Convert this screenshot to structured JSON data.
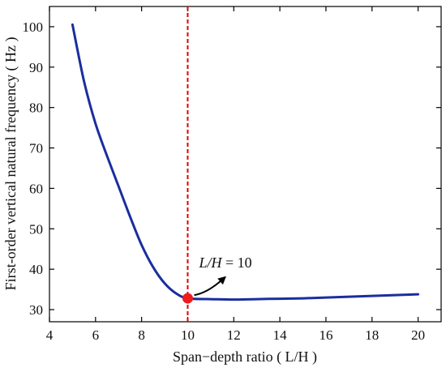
{
  "chart_data": {
    "type": "line",
    "xlabel": "Span−depth ratio ( L/H )",
    "ylabel": "First-order vertical natural frequency ( Hz )",
    "xlim": [
      4,
      21
    ],
    "ylim": [
      27,
      105
    ],
    "x_ticks": [
      4,
      6,
      8,
      10,
      12,
      14,
      16,
      18,
      20
    ],
    "y_ticks": [
      30,
      40,
      50,
      60,
      70,
      80,
      90,
      100
    ],
    "grid": false,
    "legend": "none",
    "colors": {
      "line": "#1a2e9e",
      "marker": "#ee1c1c",
      "ref_line": "#e00000"
    },
    "series": [
      {
        "x": [
          5.0,
          5.5,
          6.0,
          6.5,
          7.0,
          7.5,
          8.0,
          8.5,
          9.0,
          9.5,
          10.0,
          11.0,
          12.0,
          13.0,
          14.0,
          15.0,
          16.0,
          17.0,
          18.0,
          19.0,
          20.0
        ],
        "values": [
          100.5,
          86.5,
          76.0,
          68.0,
          60.5,
          53.0,
          46.0,
          40.5,
          36.5,
          34.0,
          32.8,
          32.6,
          32.5,
          32.6,
          32.7,
          32.8,
          33.0,
          33.2,
          33.4,
          33.6,
          33.8
        ]
      }
    ],
    "reference_line": {
      "x": 10
    },
    "highlight_point": {
      "x": 10,
      "y": 32.8
    },
    "annotation": {
      "label_italic": "L/H",
      "label_rest": " = 10",
      "x": 10,
      "y": 32.8
    }
  }
}
